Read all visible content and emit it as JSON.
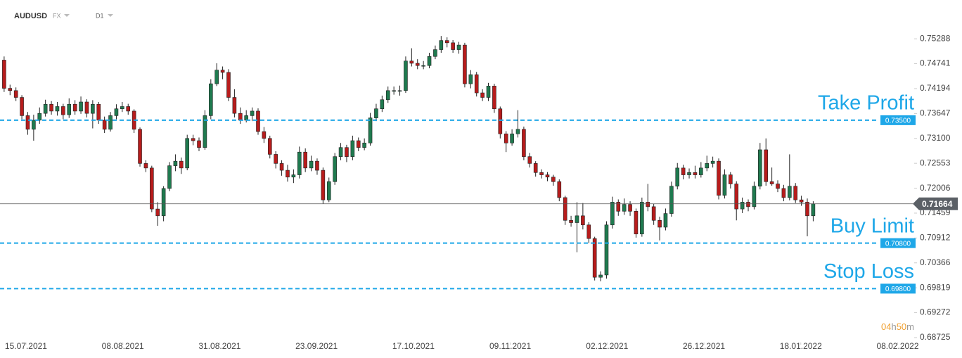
{
  "header": {
    "symbol": "AUDUSD",
    "market": "FX",
    "timeframe": "D1"
  },
  "countdown": [
    "04",
    "h",
    "50",
    "m"
  ],
  "chart_data": {
    "type": "candlestick",
    "colors": {
      "up": "#1f7a4f",
      "down": "#b71c1c",
      "level": "#1ea7e8",
      "last": "#5b6066",
      "timer": "#f0a030"
    },
    "ylim": [
      0.6857,
      0.7614
    ],
    "yticks": [
      0.75288,
      0.74741,
      0.74194,
      0.73647,
      {
        "value": 0.731,
        "label": "0.73100"
      },
      0.72553,
      0.72006,
      0.71459,
      0.70912,
      0.70366,
      0.69819,
      0.69272,
      0.68725
    ],
    "xlim": [
      -0.7,
      154.1
    ],
    "xticks": [
      {
        "value": 3.7,
        "label": "15.07.2021"
      },
      {
        "value": 20.1,
        "label": "08.08.2021"
      },
      {
        "value": 36.5,
        "label": "31.08.2021"
      },
      {
        "value": 52.9,
        "label": "23.09.2021"
      },
      {
        "value": 69.3,
        "label": "17.10.2021"
      },
      {
        "value": 85.7,
        "label": "09.11.2021"
      },
      {
        "value": 102.1,
        "label": "02.12.2021"
      },
      {
        "value": 118.5,
        "label": "26.12.2021"
      },
      {
        "value": 134.9,
        "label": "18.01.2022"
      },
      {
        "value": 151.3,
        "label": "08.02.2022"
      }
    ],
    "last_price": 0.71664,
    "levels": [
      {
        "label": "Take Profit",
        "value": 0.735,
        "value_label": "0.73500"
      },
      {
        "label": "Buy Limit",
        "value": 0.708,
        "value_label": "0.70800"
      },
      {
        "label": "Stop Loss",
        "value": 0.698,
        "value_label": "0.69800"
      }
    ],
    "ohlc": [
      [
        0.7482,
        0.749,
        0.7412,
        0.742
      ],
      [
        0.742,
        0.7428,
        0.7405,
        0.7415
      ],
      [
        0.7415,
        0.7422,
        0.7392,
        0.74
      ],
      [
        0.74,
        0.7405,
        0.7352,
        0.736
      ],
      [
        0.736,
        0.7368,
        0.7318,
        0.733
      ],
      [
        0.733,
        0.7362,
        0.7305,
        0.735
      ],
      [
        0.735,
        0.7378,
        0.7342,
        0.7365
      ],
      [
        0.7365,
        0.7395,
        0.7358,
        0.7385
      ],
      [
        0.7385,
        0.7392,
        0.7362,
        0.737
      ],
      [
        0.737,
        0.739,
        0.736,
        0.738
      ],
      [
        0.738,
        0.7386,
        0.7352,
        0.7362
      ],
      [
        0.7362,
        0.7398,
        0.7355,
        0.7385
      ],
      [
        0.7385,
        0.7394,
        0.7362,
        0.737
      ],
      [
        0.737,
        0.7402,
        0.7364,
        0.739
      ],
      [
        0.739,
        0.7396,
        0.7356,
        0.7365
      ],
      [
        0.7365,
        0.7394,
        0.7332,
        0.7385
      ],
      [
        0.7385,
        0.739,
        0.7342,
        0.735
      ],
      [
        0.735,
        0.7358,
        0.7322,
        0.733
      ],
      [
        0.733,
        0.7368,
        0.7325,
        0.736
      ],
      [
        0.736,
        0.7385,
        0.7352,
        0.7375
      ],
      [
        0.7375,
        0.739,
        0.7368,
        0.738
      ],
      [
        0.738,
        0.7386,
        0.7362,
        0.737
      ],
      [
        0.737,
        0.7374,
        0.7322,
        0.733
      ],
      [
        0.733,
        0.7334,
        0.7248,
        0.7255
      ],
      [
        0.7255,
        0.7262,
        0.7236,
        0.7245
      ],
      [
        0.7245,
        0.725,
        0.7148,
        0.7155
      ],
      [
        0.7155,
        0.717,
        0.7118,
        0.714
      ],
      [
        0.714,
        0.7205,
        0.7128,
        0.72
      ],
      [
        0.72,
        0.7258,
        0.7194,
        0.725
      ],
      [
        0.725,
        0.7275,
        0.7238,
        0.726
      ],
      [
        0.726,
        0.7268,
        0.7232,
        0.7245
      ],
      [
        0.7245,
        0.7318,
        0.724,
        0.731
      ],
      [
        0.731,
        0.7318,
        0.7295,
        0.7305
      ],
      [
        0.7305,
        0.7312,
        0.7282,
        0.729
      ],
      [
        0.729,
        0.7372,
        0.7285,
        0.736
      ],
      [
        0.736,
        0.744,
        0.7352,
        0.743
      ],
      [
        0.743,
        0.7475,
        0.7425,
        0.746
      ],
      [
        0.746,
        0.7468,
        0.744,
        0.7455
      ],
      [
        0.7455,
        0.7462,
        0.7392,
        0.74
      ],
      [
        0.74,
        0.7418,
        0.7356,
        0.7365
      ],
      [
        0.7365,
        0.7378,
        0.7342,
        0.735
      ],
      [
        0.735,
        0.7372,
        0.7345,
        0.736
      ],
      [
        0.736,
        0.7378,
        0.7348,
        0.737
      ],
      [
        0.737,
        0.7376,
        0.7318,
        0.7325
      ],
      [
        0.7325,
        0.7335,
        0.73,
        0.731
      ],
      [
        0.731,
        0.7316,
        0.7266,
        0.7275
      ],
      [
        0.7275,
        0.7282,
        0.7244,
        0.7255
      ],
      [
        0.7255,
        0.7262,
        0.7228,
        0.724
      ],
      [
        0.724,
        0.7252,
        0.7215,
        0.7225
      ],
      [
        0.7225,
        0.7242,
        0.7212,
        0.723
      ],
      [
        0.723,
        0.7292,
        0.7222,
        0.728
      ],
      [
        0.728,
        0.7288,
        0.7236,
        0.7245
      ],
      [
        0.7245,
        0.7272,
        0.7238,
        0.726
      ],
      [
        0.726,
        0.7266,
        0.723,
        0.724
      ],
      [
        0.724,
        0.7246,
        0.7166,
        0.7175
      ],
      [
        0.7175,
        0.7224,
        0.717,
        0.7215
      ],
      [
        0.7215,
        0.7278,
        0.7208,
        0.727
      ],
      [
        0.727,
        0.73,
        0.7262,
        0.729
      ],
      [
        0.729,
        0.7296,
        0.7258,
        0.727
      ],
      [
        0.727,
        0.7316,
        0.7262,
        0.7305
      ],
      [
        0.7305,
        0.7312,
        0.7282,
        0.729
      ],
      [
        0.729,
        0.731,
        0.7284,
        0.73
      ],
      [
        0.73,
        0.7366,
        0.7294,
        0.7355
      ],
      [
        0.7355,
        0.7386,
        0.7348,
        0.7375
      ],
      [
        0.7375,
        0.7404,
        0.7368,
        0.7395
      ],
      [
        0.7395,
        0.7424,
        0.7388,
        0.7415
      ],
      [
        0.7415,
        0.7424,
        0.7406,
        0.7415
      ],
      [
        0.7415,
        0.7426,
        0.7404,
        0.7415
      ],
      [
        0.7415,
        0.749,
        0.741,
        0.748
      ],
      [
        0.748,
        0.7508,
        0.7468,
        0.7475
      ],
      [
        0.7475,
        0.7484,
        0.7462,
        0.747
      ],
      [
        0.747,
        0.748,
        0.7462,
        0.747
      ],
      [
        0.747,
        0.7498,
        0.7464,
        0.749
      ],
      [
        0.749,
        0.7514,
        0.7484,
        0.7505
      ],
      [
        0.7505,
        0.7535,
        0.7498,
        0.7525
      ],
      [
        0.7525,
        0.7532,
        0.751,
        0.752
      ],
      [
        0.752,
        0.7526,
        0.7498,
        0.7505
      ],
      [
        0.7505,
        0.7522,
        0.7496,
        0.7515
      ],
      [
        0.7515,
        0.752,
        0.7422,
        0.743
      ],
      [
        0.743,
        0.746,
        0.742,
        0.745
      ],
      [
        0.745,
        0.7456,
        0.7402,
        0.741
      ],
      [
        0.741,
        0.7418,
        0.7392,
        0.74
      ],
      [
        0.74,
        0.7432,
        0.7392,
        0.7425
      ],
      [
        0.7425,
        0.743,
        0.7366,
        0.7375
      ],
      [
        0.7375,
        0.738,
        0.731,
        0.732
      ],
      [
        0.732,
        0.7326,
        0.728,
        0.73
      ],
      [
        0.73,
        0.733,
        0.7294,
        0.732
      ],
      [
        0.732,
        0.7372,
        0.7312,
        0.733
      ],
      [
        0.733,
        0.7336,
        0.7262,
        0.727
      ],
      [
        0.727,
        0.7278,
        0.7246,
        0.7255
      ],
      [
        0.7255,
        0.726,
        0.7226,
        0.7235
      ],
      [
        0.7235,
        0.7242,
        0.7222,
        0.723
      ],
      [
        0.723,
        0.7236,
        0.7216,
        0.7225
      ],
      [
        0.7225,
        0.723,
        0.7206,
        0.7215
      ],
      [
        0.7215,
        0.722,
        0.7172,
        0.718
      ],
      [
        0.718,
        0.7184,
        0.712,
        0.713
      ],
      [
        0.713,
        0.714,
        0.7116,
        0.7125
      ],
      [
        0.7125,
        0.717,
        0.706,
        0.714
      ],
      [
        0.714,
        0.7168,
        0.711,
        0.712
      ],
      [
        0.712,
        0.7126,
        0.708,
        0.709
      ],
      [
        0.709,
        0.7094,
        0.6998,
        0.7005
      ],
      [
        0.7005,
        0.7018,
        0.6996,
        0.701
      ],
      [
        0.701,
        0.7128,
        0.7002,
        0.712
      ],
      [
        0.712,
        0.7182,
        0.7112,
        0.717
      ],
      [
        0.717,
        0.7176,
        0.714,
        0.715
      ],
      [
        0.715,
        0.7178,
        0.7142,
        0.7165
      ],
      [
        0.7165,
        0.7172,
        0.714,
        0.715
      ],
      [
        0.715,
        0.7156,
        0.7092,
        0.71
      ],
      [
        0.71,
        0.718,
        0.7094,
        0.717
      ],
      [
        0.717,
        0.721,
        0.715,
        0.716
      ],
      [
        0.716,
        0.7166,
        0.712,
        0.713
      ],
      [
        0.713,
        0.7138,
        0.7086,
        0.7115
      ],
      [
        0.7115,
        0.7156,
        0.7108,
        0.7145
      ],
      [
        0.7145,
        0.7215,
        0.7138,
        0.7205
      ],
      [
        0.7205,
        0.7256,
        0.7198,
        0.7245
      ],
      [
        0.7245,
        0.7252,
        0.722,
        0.723
      ],
      [
        0.723,
        0.7244,
        0.7222,
        0.7235
      ],
      [
        0.7235,
        0.725,
        0.7222,
        0.723
      ],
      [
        0.723,
        0.7258,
        0.7224,
        0.7245
      ],
      [
        0.7245,
        0.7272,
        0.7238,
        0.7255
      ],
      [
        0.7255,
        0.727,
        0.7246,
        0.726
      ],
      [
        0.726,
        0.7266,
        0.7176,
        0.7185
      ],
      [
        0.7185,
        0.7242,
        0.7178,
        0.723
      ],
      [
        0.723,
        0.7236,
        0.72,
        0.721
      ],
      [
        0.721,
        0.7216,
        0.713,
        0.7155
      ],
      [
        0.7155,
        0.718,
        0.7146,
        0.717
      ],
      [
        0.717,
        0.7176,
        0.715,
        0.716
      ],
      [
        0.716,
        0.7215,
        0.7154,
        0.7205
      ],
      [
        0.7205,
        0.73,
        0.7198,
        0.7285
      ],
      [
        0.7285,
        0.731,
        0.7206,
        0.7215
      ],
      [
        0.7215,
        0.7246,
        0.7206,
        0.721
      ],
      [
        0.721,
        0.7218,
        0.7192,
        0.72
      ],
      [
        0.72,
        0.7208,
        0.7172,
        0.718
      ],
      [
        0.718,
        0.7275,
        0.7174,
        0.7205
      ],
      [
        0.7205,
        0.7212,
        0.7168,
        0.7175
      ],
      [
        0.7175,
        0.7184,
        0.7162,
        0.717
      ],
      [
        0.717,
        0.7178,
        0.7095,
        0.714
      ],
      [
        0.714,
        0.7172,
        0.7128,
        0.71664
      ]
    ]
  }
}
